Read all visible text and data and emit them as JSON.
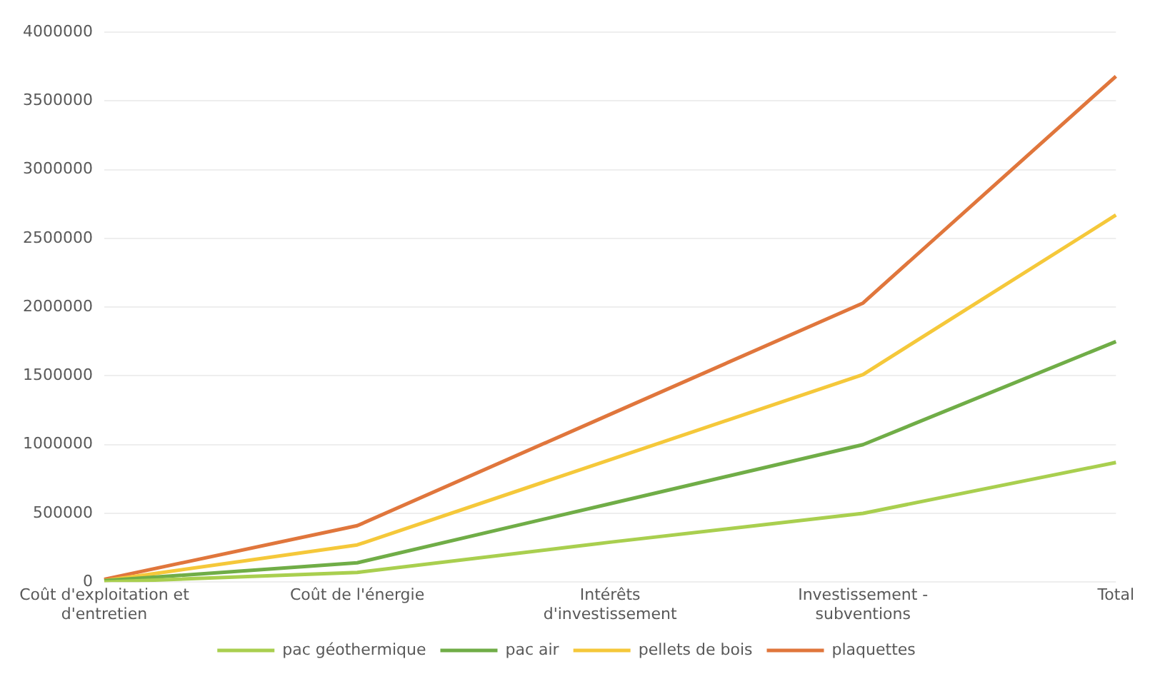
{
  "chart_data": {
    "type": "line",
    "categories": [
      "Coût d'exploitation et d'entretien",
      "Coût de l'énergie",
      "Intérêts d'investissement",
      "Investissement - subventions",
      "Total"
    ],
    "series": [
      {
        "name": "pac géothermique",
        "color": "#a9cf4f",
        "values": [
          0,
          70000,
          290000,
          500000,
          870000
        ]
      },
      {
        "name": "pac air",
        "color": "#70ad47",
        "values": [
          10000,
          140000,
          570000,
          1000000,
          1750000
        ]
      },
      {
        "name": "pellets de bois",
        "color": "#f5c83a",
        "values": [
          10000,
          270000,
          890000,
          1510000,
          2670000
        ]
      },
      {
        "name": "plaquettes",
        "color": "#e0763c",
        "values": [
          20000,
          410000,
          1220000,
          2030000,
          3680000
        ]
      }
    ],
    "ylim": [
      0,
      4000000
    ],
    "yticks": [
      0,
      500000,
      1000000,
      1500000,
      2000000,
      2500000,
      3000000,
      3500000,
      4000000
    ],
    "grid": "y",
    "legend": "bottom",
    "marker": "none",
    "line_style": "solid"
  }
}
